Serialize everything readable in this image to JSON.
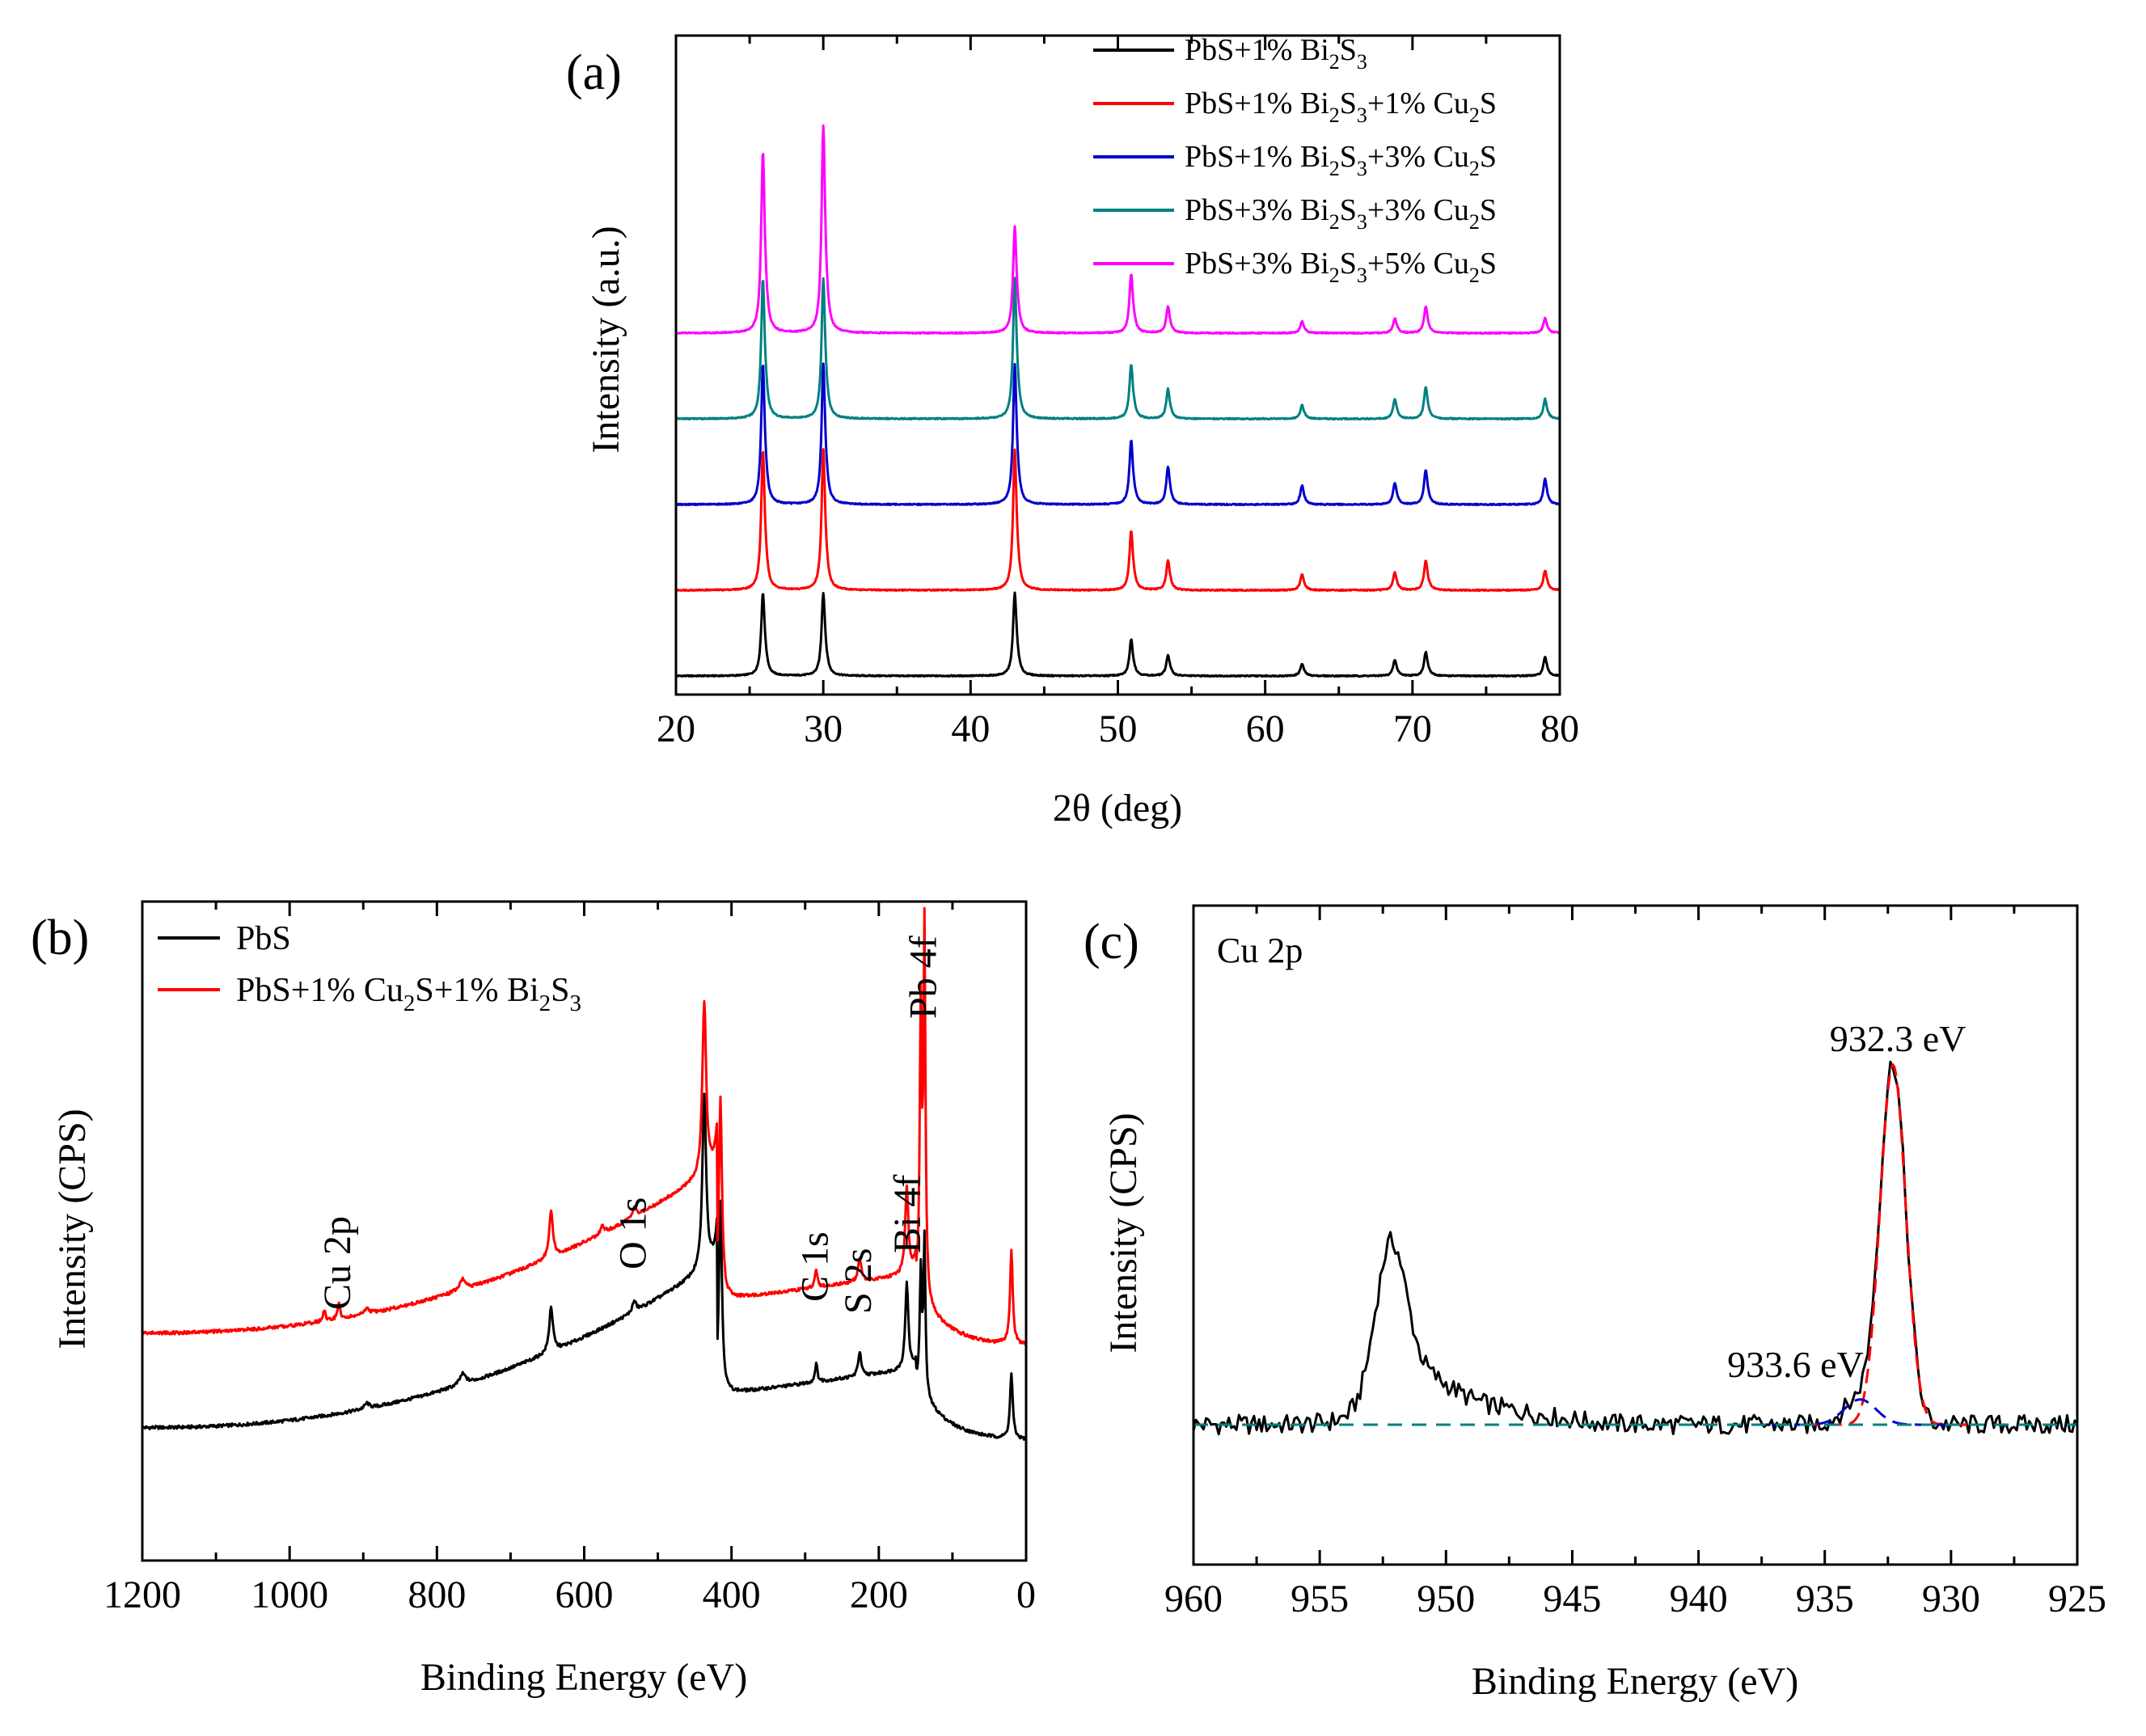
{
  "chart_data": [
    {
      "panel_label": "(a)",
      "type": "line",
      "title": "",
      "xlabel": "2θ (deg)",
      "ylabel": "Intensity  (a.u.)",
      "xlim": [
        20,
        80
      ],
      "xticks": [
        "20",
        "30",
        "40",
        "50",
        "60",
        "70",
        "80"
      ],
      "legend_position": "top-right",
      "peak_positions": [
        25.9,
        30.0,
        43.0,
        50.9,
        53.4,
        62.5,
        68.8,
        70.9,
        79.0
      ],
      "series": [
        {
          "name": "PbS+1% Bi2S3",
          "label_parts": [
            "PbS+1% Bi",
            "2",
            "S",
            "3",
            "",
            "",
            ""
          ],
          "color": "#000000",
          "baseline": 0.0,
          "peak_heights": [
            0.84,
            0.84,
            0.84,
            0.37,
            0.21,
            0.12,
            0.16,
            0.24,
            0.19
          ]
        },
        {
          "name": "PbS+1% Bi2S3+1% Cu2S",
          "label_parts": [
            "PbS+1% Bi",
            "2",
            "S",
            "3",
            "+1% Cu",
            "2",
            "S"
          ],
          "color": "#ff0000",
          "baseline": 1.0,
          "peak_heights": [
            1.42,
            1.42,
            1.42,
            0.6,
            0.3,
            0.16,
            0.18,
            0.3,
            0.2
          ]
        },
        {
          "name": "PbS+1% Bi2S3+3% Cu2S",
          "label_parts": [
            "PbS+1% Bi",
            "2",
            "S",
            "3",
            "+3% Cu",
            "2",
            "S"
          ],
          "color": "#0000cc",
          "baseline": 2.0,
          "peak_heights": [
            1.42,
            1.42,
            1.42,
            0.65,
            0.38,
            0.19,
            0.22,
            0.35,
            0.26
          ]
        },
        {
          "name": "PbS+3% Bi2S3+3% Cu2S",
          "label_parts": [
            "PbS+3% Bi",
            "2",
            "S",
            "3",
            "+3% Cu",
            "2",
            "S"
          ],
          "color": "#008080",
          "baseline": 3.0,
          "peak_heights": [
            1.42,
            1.42,
            1.42,
            0.55,
            0.3,
            0.14,
            0.2,
            0.32,
            0.2
          ]
        },
        {
          "name": "PbS+3% Bi2S3+5% Cu2S",
          "label_parts": [
            "PbS+3% Bi",
            "2",
            "S",
            "3",
            "+5% Cu",
            "2",
            "S"
          ],
          "color": "#ff00ff",
          "baseline": 4.0,
          "peak_heights": [
            1.84,
            2.1,
            1.08,
            0.6,
            0.27,
            0.12,
            0.15,
            0.27,
            0.15
          ]
        }
      ]
    },
    {
      "panel_label": "(b)",
      "type": "line",
      "title": "",
      "xlabel": "Binding Energy (eV)",
      "ylabel": "Intensity (CPS)",
      "xlim": [
        1200,
        0
      ],
      "xticks": [
        "1200",
        "1000",
        "800",
        "600",
        "400",
        "200",
        "0"
      ],
      "legend_position": "top-left",
      "series": [
        {
          "name": "PbS",
          "label_parts": [
            "PbS",
            "",
            "",
            "",
            "",
            ""
          ],
          "color": "#000000"
        },
        {
          "name": "PbS+1% Cu2S+1% Bi2S3",
          "label_parts": [
            "PbS+1% Cu",
            "2",
            "S+1% Bi",
            "2",
            "S",
            "3"
          ],
          "color": "#ff0000"
        }
      ],
      "annotations": [
        {
          "text": "Cu 2p",
          "x": 933
        },
        {
          "text": "O 1s",
          "x": 532
        },
        {
          "text": "C 1s",
          "x": 285
        },
        {
          "text": "S 2s",
          "x": 226
        },
        {
          "text": "Bi 4f",
          "x": 159
        },
        {
          "text": "Pb 4f",
          "x": 138
        }
      ]
    },
    {
      "panel_label": "(c)",
      "type": "line",
      "title": "Cu 2p",
      "xlabel": "Binding Energy (eV)",
      "ylabel": "Intensity (CPS)",
      "xlim": [
        960,
        925
      ],
      "xticks": [
        "960",
        "955",
        "950",
        "945",
        "940",
        "935",
        "930",
        "925"
      ],
      "background_level": 0.0,
      "peaks": [
        {
          "label": "932.3 eV",
          "center": 932.3,
          "height": 1.0,
          "fwhm": 1.2,
          "color": "#ff0000"
        },
        {
          "label": "933.6 eV",
          "center": 933.6,
          "height": 0.07,
          "fwhm": 1.5,
          "color": "#0000cc"
        }
      ],
      "satellite": {
        "center": 952.2,
        "height": 0.4
      }
    }
  ]
}
